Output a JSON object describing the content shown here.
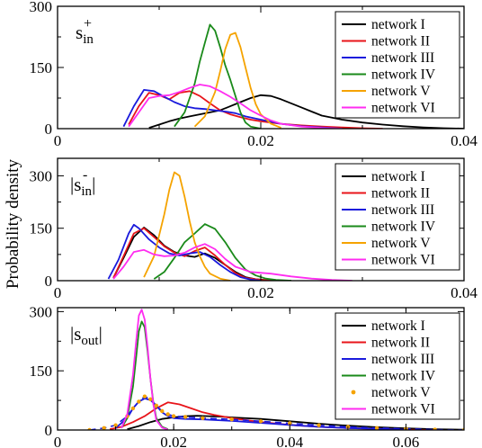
{
  "figure": {
    "ylabel": "Probability density"
  },
  "colors": {
    "network I": "#000000",
    "network II": "#e8141a",
    "network III": "#1a1adc",
    "network IV": "#1a8a1a",
    "network V": "#f5a300",
    "network VI": "#ff2cf0"
  },
  "chart_data": [
    {
      "type": "line",
      "panel_label": "s_in^+",
      "xlim": [
        0,
        0.04
      ],
      "ylim": [
        0,
        300
      ],
      "xticks": [
        0,
        0.02,
        0.04
      ],
      "xtick_labels": [
        "0",
        "0.02",
        "0.04"
      ],
      "yticks": [
        0,
        150,
        300
      ],
      "ytick_labels": [
        "0",
        "150",
        "300"
      ],
      "legend_position": "top-right",
      "series": [
        {
          "name": "network I",
          "style": "line",
          "x": [
            0.009,
            0.01,
            0.011,
            0.012,
            0.013,
            0.014,
            0.015,
            0.016,
            0.017,
            0.018,
            0.019,
            0.02,
            0.021,
            0.022,
            0.023,
            0.024,
            0.025,
            0.026,
            0.028,
            0.03,
            0.032,
            0.034,
            0.036,
            0.038,
            0.04
          ],
          "y": [
            2,
            10,
            18,
            25,
            30,
            35,
            40,
            45,
            55,
            65,
            75,
            82,
            80,
            72,
            62,
            52,
            42,
            32,
            22,
            15,
            10,
            6,
            3,
            1,
            0
          ]
        },
        {
          "name": "network II",
          "style": "line",
          "x": [
            0.007,
            0.008,
            0.009,
            0.01,
            0.011,
            0.012,
            0.013,
            0.014,
            0.015,
            0.016,
            0.017,
            0.018,
            0.019,
            0.02,
            0.022,
            0.024,
            0.026,
            0.028,
            0.03,
            0.032
          ],
          "y": [
            10,
            55,
            88,
            82,
            72,
            88,
            92,
            80,
            62,
            45,
            35,
            28,
            22,
            18,
            12,
            8,
            5,
            3,
            1,
            0
          ]
        },
        {
          "name": "network III",
          "style": "line",
          "x": [
            0.0065,
            0.0075,
            0.0085,
            0.0095,
            0.0105,
            0.0115,
            0.0125,
            0.0135,
            0.0145,
            0.0155,
            0.0165,
            0.0175,
            0.0185,
            0.02,
            0.022,
            0.024,
            0.026,
            0.028
          ],
          "y": [
            5,
            55,
            95,
            92,
            78,
            65,
            55,
            50,
            48,
            45,
            42,
            38,
            30,
            22,
            12,
            6,
            3,
            0
          ]
        },
        {
          "name": "network IV",
          "style": "line",
          "x": [
            0.0115,
            0.0125,
            0.0135,
            0.014,
            0.0145,
            0.015,
            0.0155,
            0.016,
            0.0165,
            0.017,
            0.0175,
            0.018,
            0.0185,
            0.019,
            0.02
          ],
          "y": [
            5,
            40,
            110,
            165,
            210,
            255,
            240,
            200,
            155,
            120,
            80,
            40,
            15,
            5,
            0
          ]
        },
        {
          "name": "network V",
          "style": "line",
          "x": [
            0.0135,
            0.0145,
            0.0155,
            0.016,
            0.0165,
            0.017,
            0.0175,
            0.018,
            0.0185,
            0.019,
            0.0195,
            0.02,
            0.021,
            0.022
          ],
          "y": [
            5,
            30,
            90,
            140,
            195,
            230,
            235,
            200,
            150,
            100,
            60,
            35,
            12,
            2
          ]
        },
        {
          "name": "network VI",
          "style": "line",
          "x": [
            0.007,
            0.008,
            0.009,
            0.01,
            0.011,
            0.012,
            0.013,
            0.014,
            0.015,
            0.016,
            0.017,
            0.018,
            0.019,
            0.02,
            0.021,
            0.022,
            0.024,
            0.026,
            0.028
          ],
          "y": [
            5,
            40,
            75,
            80,
            82,
            90,
            100,
            108,
            104,
            92,
            78,
            62,
            45,
            32,
            20,
            12,
            5,
            2,
            0
          ]
        }
      ]
    },
    {
      "type": "line",
      "panel_label": "|s_in^-|",
      "xlim": [
        0,
        0.04
      ],
      "ylim": [
        0,
        350
      ],
      "xticks": [
        0,
        0.02,
        0.04
      ],
      "xtick_labels": [
        "0",
        "0.02",
        "0.04"
      ],
      "yticks": [
        0,
        150,
        300
      ],
      "ytick_labels": [
        "0",
        "150",
        "300"
      ],
      "legend_position": "top-right",
      "series": [
        {
          "name": "network I",
          "style": "line",
          "x": [
            0.0055,
            0.0065,
            0.0075,
            0.0085,
            0.0095,
            0.0105,
            0.0115,
            0.0125,
            0.0135,
            0.0145,
            0.0155,
            0.0165,
            0.0175,
            0.0185,
            0.0195,
            0.021,
            0.023
          ],
          "y": [
            8,
            65,
            125,
            152,
            130,
            100,
            82,
            72,
            68,
            78,
            65,
            45,
            25,
            10,
            4,
            1,
            0
          ]
        },
        {
          "name": "network II",
          "style": "line",
          "x": [
            0.0055,
            0.0065,
            0.0075,
            0.0085,
            0.0095,
            0.0105,
            0.0115,
            0.0125,
            0.0135,
            0.0145,
            0.0155,
            0.0165,
            0.0175,
            0.0185,
            0.02,
            0.022
          ],
          "y": [
            8,
            70,
            135,
            150,
            125,
            98,
            80,
            70,
            85,
            95,
            72,
            45,
            22,
            8,
            2,
            0
          ]
        },
        {
          "name": "network III",
          "style": "line",
          "x": [
            0.005,
            0.006,
            0.007,
            0.0075,
            0.008,
            0.009,
            0.01,
            0.011,
            0.012,
            0.013,
            0.014,
            0.015,
            0.016,
            0.017,
            0.018,
            0.019,
            0.02
          ],
          "y": [
            5,
            60,
            135,
            160,
            150,
            118,
            95,
            78,
            72,
            78,
            82,
            68,
            45,
            25,
            10,
            3,
            0
          ]
        },
        {
          "name": "network IV",
          "style": "line",
          "x": [
            0.0095,
            0.0105,
            0.0115,
            0.0125,
            0.0135,
            0.0145,
            0.0155,
            0.0165,
            0.0175,
            0.0185,
            0.0195,
            0.0205,
            0.0215,
            0.023
          ],
          "y": [
            5,
            25,
            65,
            110,
            135,
            162,
            148,
            110,
            65,
            32,
            15,
            6,
            2,
            0
          ]
        },
        {
          "name": "network V",
          "style": "line",
          "x": [
            0.0085,
            0.0095,
            0.0105,
            0.011,
            0.0115,
            0.012,
            0.0125,
            0.013,
            0.0135,
            0.014,
            0.0145,
            0.015,
            0.016,
            0.017
          ],
          "y": [
            10,
            70,
            190,
            260,
            310,
            300,
            240,
            170,
            110,
            70,
            40,
            20,
            6,
            0
          ]
        },
        {
          "name": "network VI",
          "style": "line",
          "x": [
            0.0055,
            0.0065,
            0.0075,
            0.0085,
            0.0095,
            0.0105,
            0.0115,
            0.0125,
            0.0135,
            0.0145,
            0.0155,
            0.0165,
            0.0175,
            0.019,
            0.021,
            0.023,
            0.025,
            0.027,
            0.029
          ],
          "y": [
            5,
            40,
            82,
            88,
            75,
            70,
            72,
            80,
            95,
            105,
            90,
            62,
            40,
            25,
            20,
            12,
            6,
            2,
            0
          ]
        }
      ]
    },
    {
      "type": "line",
      "panel_label": "|s_out|",
      "xlim": [
        0,
        0.07
      ],
      "ylim": [
        0,
        310
      ],
      "xticks": [
        0,
        0.02,
        0.04,
        0.06
      ],
      "xtick_labels": [
        "0",
        "0.02",
        "0.04",
        "0.06"
      ],
      "yticks": [
        0,
        150,
        300
      ],
      "ytick_labels": [
        "0",
        "150",
        "300"
      ],
      "legend_position": "top-right",
      "series": [
        {
          "name": "network I",
          "style": "line",
          "x": [
            0.012,
            0.014,
            0.016,
            0.018,
            0.02,
            0.022,
            0.024,
            0.026,
            0.028,
            0.03,
            0.035,
            0.04,
            0.045,
            0.05,
            0.055,
            0.06,
            0.065,
            0.07
          ],
          "y": [
            2,
            10,
            20,
            28,
            32,
            35,
            36,
            35,
            34,
            32,
            28,
            22,
            16,
            11,
            7,
            4,
            2,
            1
          ]
        },
        {
          "name": "network II",
          "style": "line",
          "x": [
            0.009,
            0.011,
            0.013,
            0.015,
            0.017,
            0.019,
            0.021,
            0.023,
            0.025,
            0.027,
            0.03,
            0.035,
            0.04,
            0.045,
            0.05,
            0.055,
            0.06,
            0.065
          ],
          "y": [
            2,
            8,
            20,
            35,
            55,
            70,
            65,
            55,
            45,
            38,
            30,
            20,
            13,
            8,
            5,
            3,
            1,
            0
          ]
        },
        {
          "name": "network III",
          "style": "line",
          "x": [
            0.01,
            0.012,
            0.013,
            0.014,
            0.015,
            0.016,
            0.017,
            0.018,
            0.019,
            0.02,
            0.022,
            0.025,
            0.03,
            0.035,
            0.04,
            0.045,
            0.05,
            0.055,
            0.06
          ],
          "y": [
            5,
            30,
            55,
            72,
            80,
            76,
            62,
            45,
            35,
            30,
            28,
            27,
            23,
            18,
            13,
            8,
            5,
            3,
            1
          ]
        },
        {
          "name": "network IV",
          "style": "line",
          "x": [
            0.011,
            0.012,
            0.013,
            0.0135,
            0.014,
            0.0145,
            0.015,
            0.0155,
            0.016,
            0.0165,
            0.017,
            0.018,
            0.019
          ],
          "y": [
            5,
            30,
            110,
            180,
            250,
            275,
            260,
            200,
            130,
            70,
            30,
            8,
            2
          ]
        },
        {
          "name": "network V",
          "style": "dashed-dots",
          "x": [
            0.0055,
            0.008,
            0.01,
            0.012,
            0.013,
            0.014,
            0.015,
            0.016,
            0.017,
            0.018,
            0.019,
            0.02,
            0.022,
            0.025,
            0.03,
            0.035,
            0.04,
            0.045,
            0.05,
            0.055,
            0.06,
            0.065,
            0.07
          ],
          "y": [
            0,
            5,
            12,
            35,
            55,
            72,
            85,
            78,
            62,
            48,
            40,
            35,
            33,
            30,
            27,
            22,
            17,
            12,
            8,
            5,
            3,
            1,
            0
          ]
        },
        {
          "name": "network VI",
          "style": "line",
          "x": [
            0.011,
            0.012,
            0.013,
            0.0135,
            0.014,
            0.0145,
            0.015,
            0.0155,
            0.016,
            0.0165,
            0.017,
            0.018,
            0.019
          ],
          "y": [
            5,
            40,
            140,
            220,
            290,
            305,
            280,
            210,
            130,
            65,
            25,
            6,
            1
          ]
        }
      ]
    }
  ]
}
